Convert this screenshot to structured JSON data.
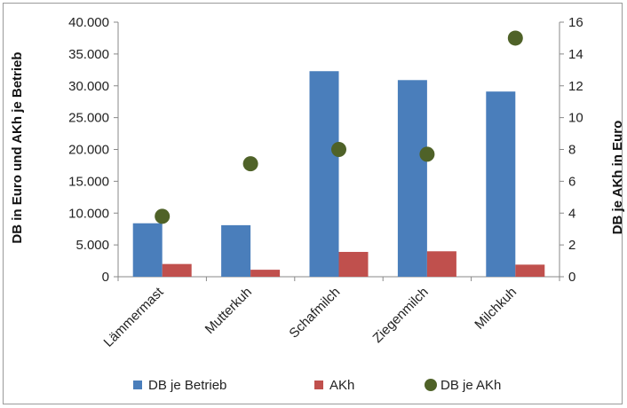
{
  "chart_data": {
    "type": "bar",
    "categories": [
      "Lämmermast",
      "Mutterkuh",
      "Schafmilch",
      "Ziegenmilch",
      "Milchkuh"
    ],
    "series": [
      {
        "name": "DB je Betrieb",
        "kind": "bar",
        "axis": "left",
        "color": "#4a7ebb",
        "values": [
          8400,
          8100,
          32300,
          30900,
          29100
        ]
      },
      {
        "name": "AKh",
        "kind": "bar",
        "axis": "left",
        "color": "#c0504d",
        "values": [
          2000,
          1100,
          3900,
          4000,
          1900
        ]
      },
      {
        "name": "DB je AKh",
        "kind": "scatter",
        "axis": "right",
        "color": "#4f6228",
        "values": [
          3.8,
          7.1,
          8.0,
          7.7,
          15.0
        ]
      }
    ],
    "ylabel": "DB in Euro und AKh je Betrieb",
    "y2label": "DB je AKh in Euro",
    "ylim": [
      0,
      40000
    ],
    "y2lim": [
      0,
      16
    ],
    "yticks": [
      "0",
      "5.000",
      "10.000",
      "15.000",
      "20.000",
      "25.000",
      "30.000",
      "35.000",
      "40.000"
    ],
    "y2ticks": [
      "0",
      "2",
      "4",
      "6",
      "8",
      "10",
      "12",
      "14",
      "16"
    ],
    "grid": false,
    "legend": "bottom"
  }
}
